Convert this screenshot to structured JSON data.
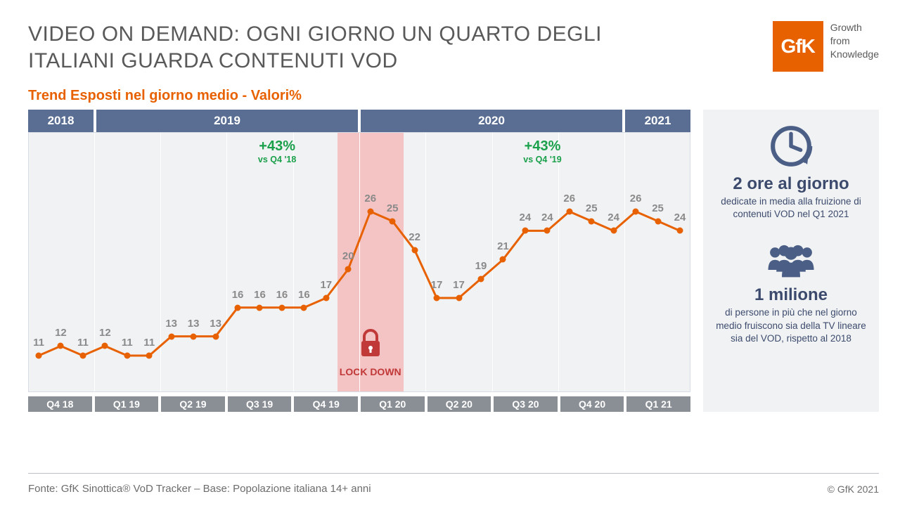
{
  "title_bold": "VIDEO ON DEMAND:",
  "title_rest": " OGNI GIORNO UN QUARTO DEGLI ITALIANI GUARDA CONTENUTI VOD",
  "logo_text": "GfK",
  "logo_tag1": "Growth",
  "logo_tag2": "from",
  "logo_tag3": "Knowledge",
  "subtitle": "Trend Esposti nel giorno medio - Valori%",
  "years": [
    {
      "label": "2018",
      "span": 3
    },
    {
      "label": "2019",
      "span": 12
    },
    {
      "label": "2020",
      "span": 12
    },
    {
      "label": "2021",
      "span": 3
    }
  ],
  "quarters": [
    "Q4 18",
    "Q1 19",
    "Q2 19",
    "Q3 19",
    "Q4 19",
    "Q1 20",
    "Q2 20",
    "Q3 20",
    "Q4 20",
    "Q1 21"
  ],
  "chart": {
    "type": "line",
    "values": [
      11,
      12,
      11,
      12,
      11,
      11,
      13,
      13,
      13,
      16,
      16,
      16,
      16,
      17,
      20,
      26,
      25,
      22,
      17,
      17,
      19,
      21,
      24,
      24,
      26,
      25,
      24,
      26,
      25,
      24
    ],
    "y_min": 8,
    "y_max": 32,
    "line_color": "#e86100",
    "line_width": 3,
    "marker_color": "#e86100",
    "marker_size": 9,
    "label_color": "#8a8a8a",
    "label_fontsize": 15,
    "background": "#f1f2f4",
    "grid_color": "#ffffff",
    "n_points": 30,
    "vgrid_every": 3,
    "lockdown": {
      "start_idx": 14,
      "end_idx": 16,
      "color": "#f4c3c4",
      "label": "LOCK DOWN",
      "label_color": "#c13838"
    }
  },
  "callouts": [
    {
      "idx": 11,
      "line1": "+43%",
      "line2": "vs Q4 '18"
    },
    {
      "idx": 23,
      "line1": "+43%",
      "line2": "vs Q4 '19"
    }
  ],
  "side": {
    "stat1_big": "2 ore al giorno",
    "stat1_small": "dedicate in media alla fruizione di contenuti VOD nel Q1 2021",
    "stat2_big": "1 milione",
    "stat2_small": "di persone in più che nel giorno medio fruiscono sia della TV lineare sia del VOD, rispetto al 2018"
  },
  "footer": "Fonte: GfK Sinottica® VoD Tracker – Base: Popolazione italiana 14+ anni",
  "copyright": "© GfK 2021",
  "colors": {
    "brand": "#e86100",
    "year_bg": "#5a6e94",
    "quarter_bg": "#8a8f96",
    "side_bg": "#f1f2f4",
    "side_icon": "#4b5f86",
    "green": "#1aa04a"
  }
}
